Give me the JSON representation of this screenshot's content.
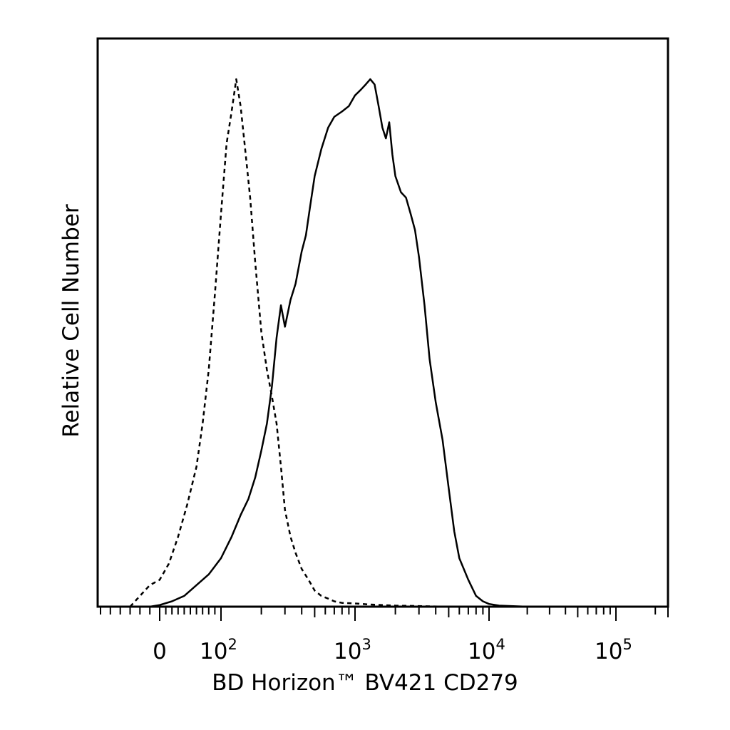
{
  "chart_data": {
    "type": "line",
    "title": "",
    "xlabel": "BD Horizon™ BV421 CD279",
    "ylabel": "Relative Cell Number",
    "x_scale": "logicle",
    "xlim": [
      -60,
      250000
    ],
    "ylim": [
      0,
      100
    ],
    "grid": false,
    "legend": "none",
    "x_tick_labels": [
      {
        "value": 0,
        "base": "0",
        "exp": ""
      },
      {
        "value": 100,
        "base": "10",
        "exp": "2"
      },
      {
        "value": 1000,
        "base": "10",
        "exp": "3"
      },
      {
        "value": 10000,
        "base": "10",
        "exp": "4"
      },
      {
        "value": 100000,
        "base": "10",
        "exp": "5"
      }
    ],
    "series": [
      {
        "style": "dashed",
        "color": "#000000",
        "x": [
          -30,
          -20,
          -10,
          0,
          15,
          30,
          45,
          60,
          70,
          80,
          90,
          100,
          110,
          120,
          130,
          140,
          150,
          165,
          180,
          200,
          220,
          240,
          260,
          280,
          300,
          330,
          360,
          400,
          450,
          500,
          560,
          630,
          700,
          800,
          1000,
          1300,
          2000,
          5000,
          10000
        ],
        "y": [
          0,
          2,
          4,
          5,
          8,
          13,
          19,
          26,
          34,
          44,
          58,
          73,
          86,
          92,
          98,
          93,
          86,
          76,
          64,
          51,
          44,
          39,
          34,
          26,
          18,
          13,
          10,
          7,
          5,
          3,
          2,
          1.5,
          1,
          0.7,
          0.6,
          0.4,
          0.2,
          0,
          0
        ]
      },
      {
        "style": "solid",
        "color": "#000000",
        "x": [
          -10,
          0,
          20,
          40,
          60,
          80,
          100,
          120,
          140,
          160,
          180,
          200,
          220,
          240,
          260,
          280,
          300,
          330,
          360,
          400,
          430,
          460,
          500,
          560,
          630,
          700,
          800,
          900,
          1000,
          1100,
          1200,
          1300,
          1400,
          1500,
          1600,
          1700,
          1800,
          1900,
          2000,
          2200,
          2400,
          2600,
          2800,
          3000,
          3300,
          3600,
          4000,
          4500,
          5000,
          5500,
          6000,
          7000,
          8000,
          9000,
          10000,
          12000,
          20000
        ],
        "y": [
          0,
          0.3,
          1,
          2,
          4,
          6,
          9,
          13,
          17,
          20,
          24,
          29,
          34,
          41,
          50,
          56,
          52,
          57,
          60,
          66,
          69,
          74,
          80,
          85,
          89,
          91,
          92,
          93,
          95,
          96,
          97,
          98,
          97,
          93,
          89,
          87,
          90,
          84,
          80,
          77,
          76,
          73,
          70,
          65,
          56,
          46,
          38,
          31,
          22,
          14,
          9,
          5,
          2,
          1,
          0.5,
          0.2,
          0
        ]
      }
    ]
  }
}
